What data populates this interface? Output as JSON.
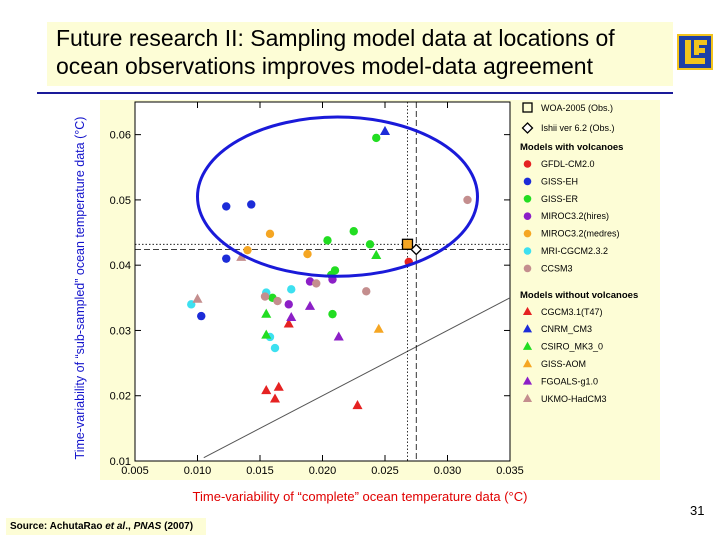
{
  "slide": {
    "title_line1": "Future research II: Sampling model data at locations of",
    "title_line2": "ocean observations improves model-data agreement",
    "page_number": "31",
    "source_prefix": "Source: AchutaRao ",
    "source_italic": "et al",
    "source_mid": "., ",
    "source_journal": "PNAS",
    "source_year": " (2007)",
    "colors": {
      "title_bg": "#fdfdd6",
      "rule": "#1a1a99",
      "ylabel": "#1414cc",
      "xlabel": "#e00000",
      "ellipse": "#1a1ad9"
    }
  },
  "chart_data": {
    "type": "scatter",
    "xlabel": "Time-variability of “complete” ocean temperature data (°C)",
    "ylabel": "Time-variability of “sub-sampled” ocean temperature data (°C)",
    "xlim": [
      0.005,
      0.035
    ],
    "ylim": [
      0.01,
      0.065
    ],
    "xticks": [
      "0.005",
      "0.010",
      "0.015",
      "0.020",
      "0.025",
      "0.030",
      "0.035"
    ],
    "yticks": [
      "0.01",
      "0.02",
      "0.03",
      "0.04",
      "0.05",
      "0.06"
    ],
    "xtick_values": [
      0.005,
      0.01,
      0.015,
      0.02,
      0.025,
      0.03,
      0.035
    ],
    "ytick_values": [
      0.01,
      0.02,
      0.03,
      0.04,
      0.05,
      0.06
    ],
    "reference_line": {
      "label": "1:1 line",
      "from": [
        0.0105,
        0.0105
      ],
      "to": [
        0.035,
        0.035
      ]
    },
    "observations": [
      {
        "name": "WOA-2005 (Obs.)",
        "x": 0.0268,
        "y": 0.0432,
        "marker": "square",
        "dash": "dotted"
      },
      {
        "name": "Ishii ver 6.2 (Obs.)",
        "x": 0.0275,
        "y": 0.0424,
        "marker": "diamond",
        "dash": "dashed"
      }
    ],
    "ellipse": {
      "cx": 0.0212,
      "cy": 0.0505,
      "rx": 0.0112,
      "ry": 0.0122
    },
    "legend_groups": [
      {
        "title": "Models with volcanoes",
        "items": [
          {
            "name": "GFDL-CM2.0",
            "color": "#e52222",
            "marker": "circle"
          },
          {
            "name": "GISS-EH",
            "color": "#1c2cd8",
            "marker": "circle"
          },
          {
            "name": "GISS-ER",
            "color": "#22dd22",
            "marker": "circle"
          },
          {
            "name": "MIROC3.2(hires)",
            "color": "#8c1fc7",
            "marker": "circle"
          },
          {
            "name": "MIROC3.2(medres)",
            "color": "#f5a623",
            "marker": "circle"
          },
          {
            "name": "MRI-CGCM2.3.2",
            "color": "#3de0f0",
            "marker": "circle"
          },
          {
            "name": "CCSM3",
            "color": "#c48e8e",
            "marker": "circle"
          }
        ]
      },
      {
        "title": "Models without volcanoes",
        "items": [
          {
            "name": "CGCM3.1(T47)",
            "color": "#e52222",
            "marker": "triangle"
          },
          {
            "name": "CNRM_CM3",
            "color": "#1c2cd8",
            "marker": "triangle"
          },
          {
            "name": "CSIRO_MK3_0",
            "color": "#22dd22",
            "marker": "triangle"
          },
          {
            "name": "GISS-AOM",
            "color": "#f5a623",
            "marker": "triangle"
          },
          {
            "name": "FGOALS-g1.0",
            "color": "#8c1fc7",
            "marker": "triangle"
          },
          {
            "name": "UKMO-HadCM3",
            "color": "#c48e8e",
            "marker": "triangle"
          }
        ]
      }
    ],
    "series": [
      {
        "name": "GFDL-CM2.0",
        "marker": "circle",
        "color": "#e52222",
        "points": [
          [
            0.0269,
            0.0405
          ]
        ]
      },
      {
        "name": "GISS-EH",
        "marker": "circle",
        "color": "#1c2cd8",
        "points": [
          [
            0.0123,
            0.049
          ],
          [
            0.0143,
            0.0493
          ],
          [
            0.0123,
            0.041
          ],
          [
            0.0103,
            0.0322
          ]
        ]
      },
      {
        "name": "GISS-ER",
        "marker": "circle",
        "color": "#22dd22",
        "points": [
          [
            0.0243,
            0.0595
          ],
          [
            0.0204,
            0.0438
          ],
          [
            0.0225,
            0.0452
          ],
          [
            0.0238,
            0.0432
          ],
          [
            0.021,
            0.0392
          ],
          [
            0.0207,
            0.0385
          ],
          [
            0.016,
            0.035
          ],
          [
            0.0208,
            0.0325
          ]
        ]
      },
      {
        "name": "MIROC3.2(hires)",
        "marker": "circle",
        "color": "#8c1fc7",
        "points": [
          [
            0.019,
            0.0375
          ],
          [
            0.0173,
            0.034
          ],
          [
            0.0208,
            0.0378
          ]
        ]
      },
      {
        "name": "MIROC3.2(medres)",
        "marker": "circle",
        "color": "#f5a623",
        "points": [
          [
            0.0158,
            0.0448
          ],
          [
            0.014,
            0.0423
          ],
          [
            0.0188,
            0.0417
          ]
        ]
      },
      {
        "name": "MRI-CGCM2.3.2",
        "marker": "circle",
        "color": "#3de0f0",
        "points": [
          [
            0.0095,
            0.034
          ],
          [
            0.0155,
            0.0358
          ],
          [
            0.0175,
            0.0363
          ],
          [
            0.0158,
            0.029
          ],
          [
            0.0162,
            0.0273
          ]
        ]
      },
      {
        "name": "CCSM3",
        "marker": "circle",
        "color": "#c48e8e",
        "points": [
          [
            0.0316,
            0.05
          ],
          [
            0.0195,
            0.0372
          ],
          [
            0.0235,
            0.036
          ],
          [
            0.0154,
            0.0352
          ],
          [
            0.0164,
            0.0345
          ]
        ]
      },
      {
        "name": "CGCM3.1(T47)",
        "marker": "triangle",
        "color": "#e52222",
        "points": [
          [
            0.0155,
            0.0208
          ],
          [
            0.0165,
            0.0213
          ],
          [
            0.0162,
            0.0195
          ],
          [
            0.0228,
            0.0185
          ],
          [
            0.0173,
            0.031
          ]
        ]
      },
      {
        "name": "CNRM_CM3",
        "marker": "triangle",
        "color": "#1c2cd8",
        "points": [
          [
            0.025,
            0.0605
          ]
        ]
      },
      {
        "name": "CSIRO_MK3_0",
        "marker": "triangle",
        "color": "#22dd22",
        "points": [
          [
            0.0243,
            0.0415
          ],
          [
            0.0155,
            0.0325
          ],
          [
            0.0155,
            0.0293
          ]
        ]
      },
      {
        "name": "GISS-AOM",
        "marker": "triangle",
        "color": "#f5a623",
        "points": [
          [
            0.0245,
            0.0302
          ]
        ]
      },
      {
        "name": "FGOALS-g1.0",
        "marker": "triangle",
        "color": "#8c1fc7",
        "points": [
          [
            0.019,
            0.0337
          ],
          [
            0.0175,
            0.032
          ],
          [
            0.0213,
            0.029
          ]
        ]
      },
      {
        "name": "UKMO-HadCM3",
        "marker": "triangle",
        "color": "#c48e8e",
        "points": [
          [
            0.01,
            0.0348
          ],
          [
            0.0135,
            0.0412
          ]
        ]
      }
    ]
  }
}
